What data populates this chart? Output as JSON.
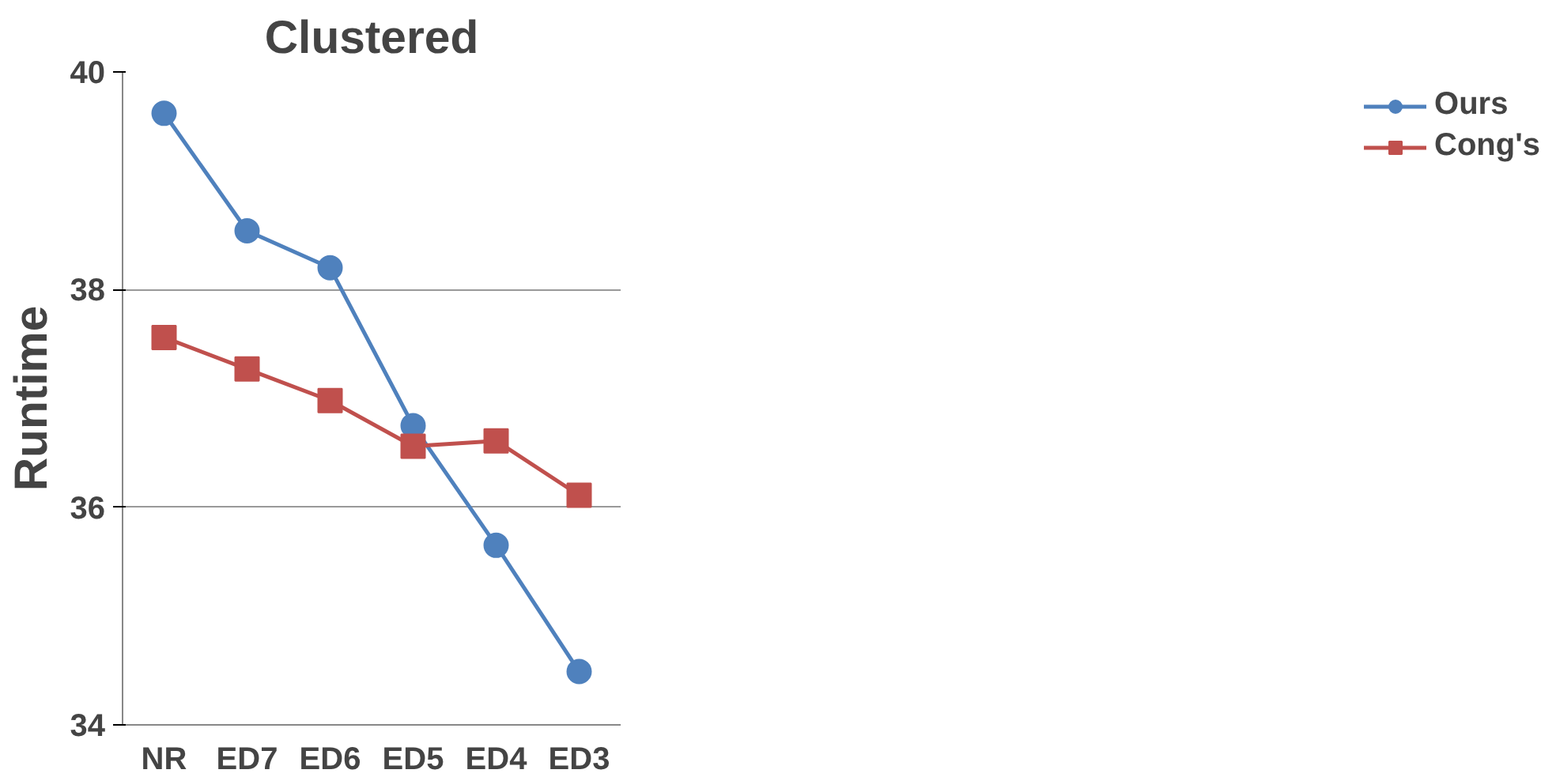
{
  "chart_data": {
    "type": "line",
    "title": "Clustered",
    "ylabel": "Runtime",
    "categories": [
      "NR",
      "ED7",
      "ED6",
      "ED5",
      "ED4",
      "ED3"
    ],
    "series": [
      {
        "name": "Ours",
        "color": "#4f81bd",
        "marker": "circle",
        "values": [
          39.62,
          38.54,
          38.2,
          36.75,
          35.65,
          34.49
        ]
      },
      {
        "name": "Cong's",
        "color": "#c0504d",
        "marker": "square",
        "values": [
          37.56,
          37.27,
          36.98,
          36.56,
          36.61,
          36.11
        ]
      }
    ],
    "ylim": [
      34,
      40
    ],
    "yticks": [
      34,
      36,
      38,
      40
    ],
    "grid": "y",
    "legend": "right"
  }
}
